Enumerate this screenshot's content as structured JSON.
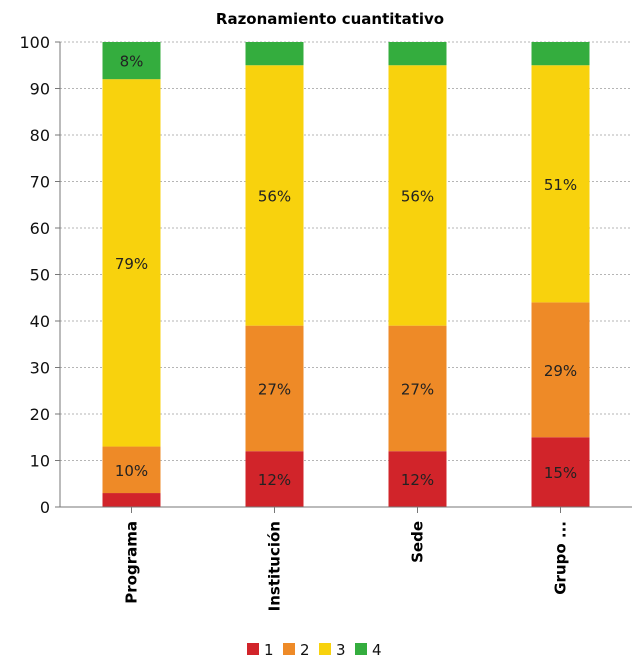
{
  "chart_data": {
    "type": "bar",
    "stacked": true,
    "title": "Razonamiento cuantitativo",
    "xlabel": "",
    "ylabel": "",
    "ylim": [
      0,
      100
    ],
    "yticks": [
      0,
      10,
      20,
      30,
      40,
      50,
      60,
      70,
      80,
      90,
      100
    ],
    "grid": true,
    "legend_position": "bottom",
    "categories": [
      "Programa",
      "Institución",
      "Sede",
      "Grupo ..."
    ],
    "series": [
      {
        "name": "1",
        "color": "#d1242a",
        "values": [
          3,
          12,
          12,
          15
        ],
        "labels": [
          "",
          "12%",
          "12%",
          "15%"
        ]
      },
      {
        "name": "2",
        "color": "#ee8a27",
        "values": [
          10,
          27,
          27,
          29
        ],
        "labels": [
          "10%",
          "27%",
          "27%",
          "29%"
        ]
      },
      {
        "name": "3",
        "color": "#f8d20d",
        "values": [
          79,
          56,
          56,
          51
        ],
        "labels": [
          "79%",
          "56%",
          "56%",
          "51%"
        ]
      },
      {
        "name": "4",
        "color": "#34ad3e",
        "values": [
          8,
          5,
          5,
          5
        ],
        "labels": [
          "8%",
          "",
          "",
          ""
        ]
      }
    ]
  }
}
